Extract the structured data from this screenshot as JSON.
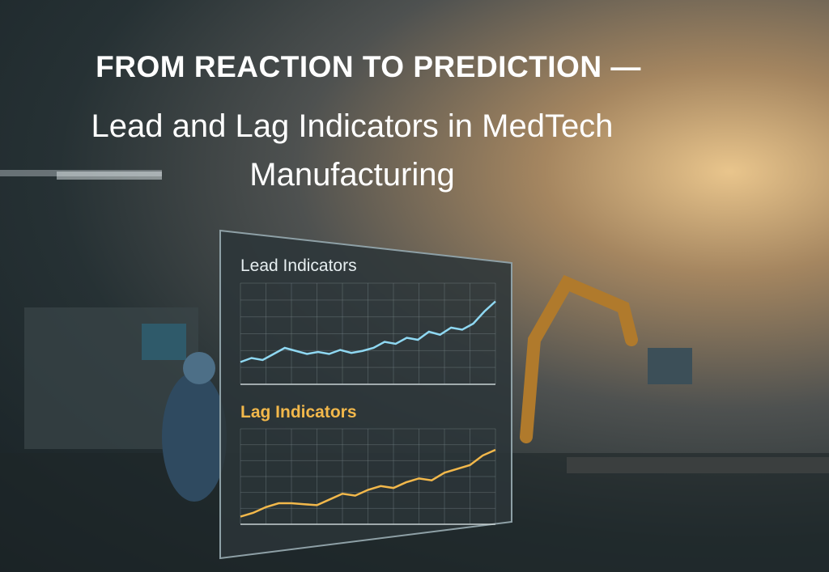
{
  "title": "FROM REACTION TO PREDICTION —",
  "subtitle": "Lead and Lag Indicators in MedTech Manufacturing",
  "chart_data": [
    {
      "type": "line",
      "title": "Lead Indicators",
      "color": "#8fd8f2",
      "values": [
        22,
        26,
        24,
        30,
        36,
        33,
        30,
        32,
        30,
        34,
        31,
        33,
        36,
        42,
        40,
        46,
        44,
        52,
        49,
        56,
        54,
        60,
        72,
        82
      ],
      "ylim": [
        0,
        100
      ]
    },
    {
      "type": "line",
      "title": "Lag Indicators",
      "color": "#f2b84b",
      "values": [
        8,
        12,
        18,
        22,
        22,
        21,
        20,
        26,
        32,
        30,
        36,
        40,
        38,
        44,
        48,
        46,
        54,
        58,
        62,
        72,
        78
      ],
      "ylim": [
        0,
        100
      ]
    }
  ]
}
